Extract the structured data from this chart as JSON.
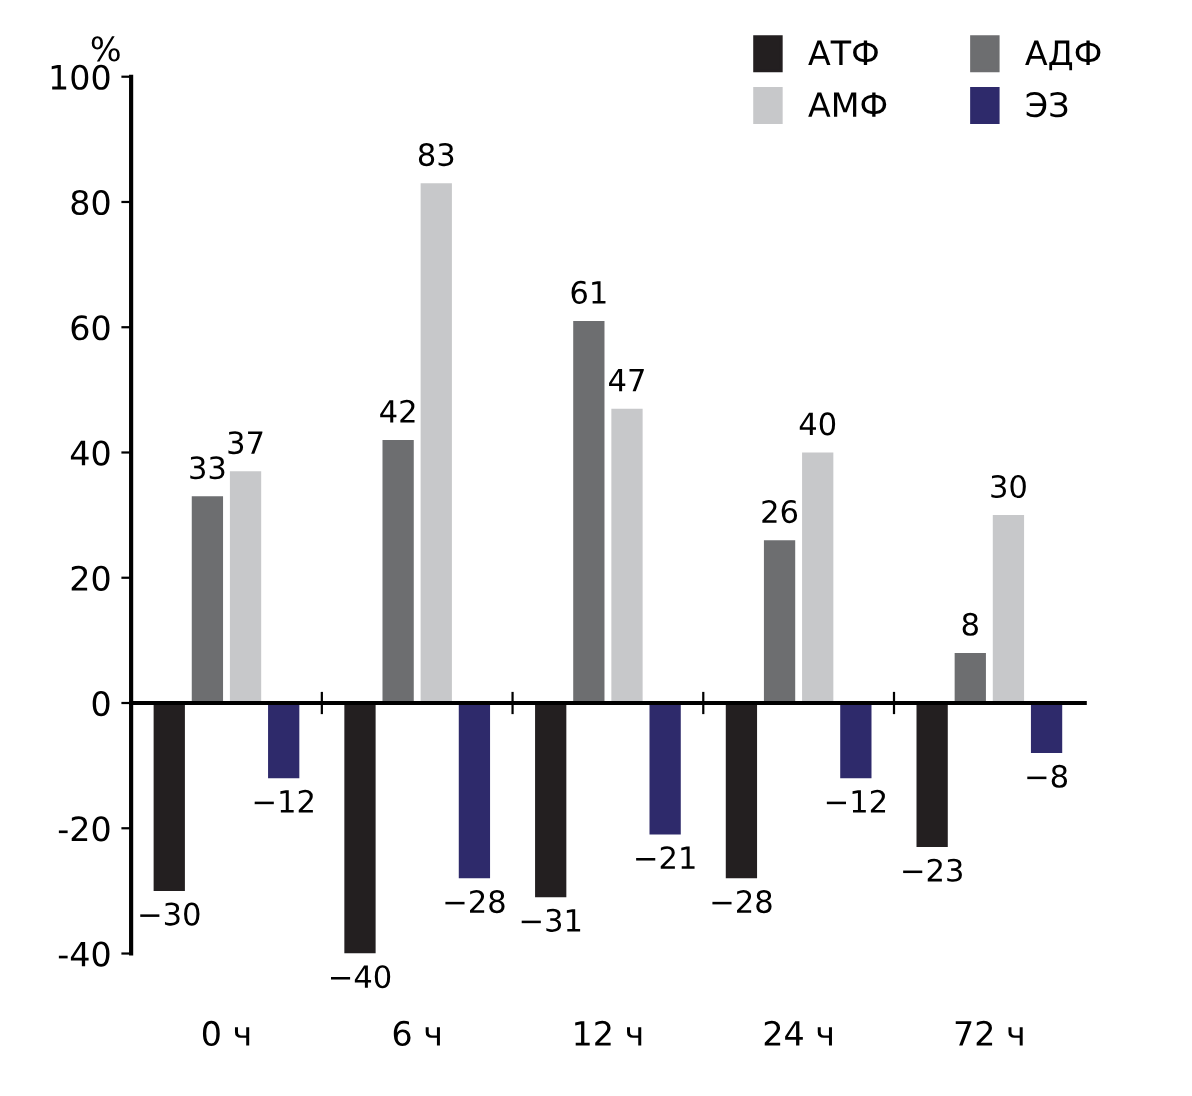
{
  "chart_data": {
    "type": "bar",
    "ylabel": "%",
    "categories": [
      "0 ч",
      "6 ч",
      "12 ч",
      "24 ч",
      "72 ч"
    ],
    "series": [
      {
        "name": "АТФ",
        "color": "#231f20",
        "values": [
          -30,
          -40,
          -31,
          -28,
          -23
        ]
      },
      {
        "name": "АДФ",
        "color": "#6d6e70",
        "values": [
          33,
          42,
          61,
          26,
          8
        ]
      },
      {
        "name": "АМФ",
        "color": "#c7c8ca",
        "values": [
          37,
          83,
          47,
          40,
          30
        ]
      },
      {
        "name": "ЭЗ",
        "color": "#2e2a6b",
        "values": [
          -12,
          -28,
          -21,
          -12,
          -8
        ]
      }
    ],
    "ylim": [
      -40,
      100
    ],
    "yticks": [
      -40,
      -20,
      0,
      20,
      40,
      60,
      80,
      100
    ],
    "data_labels": true,
    "legend": "top right"
  }
}
